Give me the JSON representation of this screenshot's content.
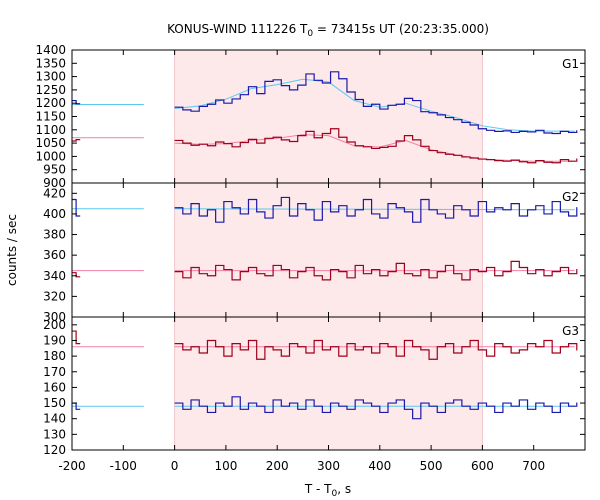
{
  "chart_data": {
    "type": "line",
    "title": {
      "main": "KONUS-WIND 111226 T",
      "sub": "0",
      "rest": " = 73415s UT (20:23:35.000)"
    },
    "xlabel": {
      "main": "T - T",
      "sub": "0",
      "rest": ", s"
    },
    "ylabel": "counts / sec",
    "xlim": [
      -200,
      800
    ],
    "xticks": [
      -200,
      -100,
      0,
      100,
      200,
      300,
      400,
      500,
      600,
      700
    ],
    "highlight_interval": [
      0,
      600
    ],
    "colors": {
      "highlight": "#fde8ea",
      "blue_data": "#1a1aaa",
      "blue_fit": "#5bc8f0",
      "red_data": "#a0001a",
      "red_fit": "#f080a8"
    },
    "panels": [
      {
        "name": "G1",
        "ylim": [
          900,
          1400
        ],
        "yticks": [
          900,
          950,
          1000,
          1050,
          1100,
          1150,
          1200,
          1250,
          1300,
          1350,
          1400
        ],
        "series": [
          {
            "color": "blue",
            "background_level": 1195,
            "background_x": [
              -200,
              -60
            ],
            "pre_data": {
              "x": [
                -200,
                -192
              ],
              "y": [
                1210,
                1198
              ]
            },
            "data": {
              "x": [
                0,
                16,
                32,
                48,
                64,
                80,
                96,
                112,
                128,
                144,
                160,
                176,
                192,
                208,
                224,
                240,
                256,
                272,
                288,
                304,
                320,
                336,
                352,
                368,
                384,
                400,
                416,
                432,
                448,
                464,
                480,
                496,
                512,
                528,
                544,
                560,
                576,
                592,
                608,
                624,
                640,
                656,
                672,
                688,
                704,
                720,
                736,
                752,
                768,
                784
              ],
              "y": [
                1185,
                1175,
                1170,
                1188,
                1196,
                1212,
                1200,
                1216,
                1232,
                1262,
                1236,
                1282,
                1288,
                1266,
                1250,
                1268,
                1310,
                1286,
                1276,
                1318,
                1292,
                1242,
                1214,
                1188,
                1196,
                1178,
                1192,
                1196,
                1218,
                1210,
                1168,
                1164,
                1156,
                1146,
                1138,
                1128,
                1118,
                1104,
                1098,
                1094,
                1096,
                1090,
                1094,
                1092,
                1098,
                1088,
                1086,
                1094,
                1090,
                1096
              ]
            },
            "fit": {
              "x": [
                0,
                50,
                100,
                150,
                200,
                250,
                300,
                350,
                400,
                450,
                500,
                550,
                600,
                650,
                700,
                780
              ],
              "y": [
                1180,
                1190,
                1215,
                1255,
                1270,
                1290,
                1280,
                1210,
                1185,
                1200,
                1170,
                1145,
                1115,
                1100,
                1095,
                1095
              ]
            }
          },
          {
            "color": "red",
            "background_level": 1070,
            "background_x": [
              -200,
              -60
            ],
            "pre_data": {
              "x": [
                -200,
                -192
              ],
              "y": [
                1058,
                1063
              ]
            },
            "data": {
              "x": [
                0,
                16,
                32,
                48,
                64,
                80,
                96,
                112,
                128,
                144,
                160,
                176,
                192,
                208,
                224,
                240,
                256,
                272,
                288,
                304,
                320,
                336,
                352,
                368,
                384,
                400,
                416,
                432,
                448,
                464,
                480,
                496,
                512,
                528,
                544,
                560,
                576,
                592,
                608,
                624,
                640,
                656,
                672,
                688,
                704,
                720,
                736,
                752,
                768,
                784
              ],
              "y": [
                1060,
                1050,
                1042,
                1046,
                1040,
                1054,
                1048,
                1036,
                1052,
                1064,
                1050,
                1068,
                1072,
                1062,
                1056,
                1078,
                1094,
                1070,
                1086,
                1104,
                1072,
                1054,
                1040,
                1036,
                1030,
                1034,
                1038,
                1058,
                1078,
                1062,
                1038,
                1022,
                1014,
                1008,
                1004,
                998,
                994,
                990,
                988,
                984,
                982,
                986,
                980,
                976,
                984,
                978,
                976,
                988,
                982,
                990
              ]
            },
            "fit": {
              "x": [
                0,
                50,
                100,
                150,
                200,
                250,
                300,
                350,
                400,
                450,
                500,
                550,
                600,
                650,
                700,
                780
              ],
              "y": [
                1050,
                1045,
                1048,
                1060,
                1068,
                1082,
                1078,
                1040,
                1035,
                1060,
                1025,
                1005,
                990,
                985,
                982,
                982
              ]
            }
          }
        ]
      },
      {
        "name": "G2",
        "ylim": [
          300,
          430
        ],
        "yticks": [
          300,
          320,
          340,
          360,
          380,
          400,
          420
        ],
        "series": [
          {
            "color": "blue",
            "background_level": 405,
            "background_x": [
              -200,
              -60
            ],
            "pre_data": {
              "x": [
                -200,
                -192
              ],
              "y": [
                414,
                398
              ]
            },
            "data": {
              "x": [
                0,
                16,
                32,
                48,
                64,
                80,
                96,
                112,
                128,
                144,
                160,
                176,
                192,
                208,
                224,
                240,
                256,
                272,
                288,
                304,
                320,
                336,
                352,
                368,
                384,
                400,
                416,
                432,
                448,
                464,
                480,
                496,
                512,
                528,
                544,
                560,
                576,
                592,
                608,
                624,
                640,
                656,
                672,
                688,
                704,
                720,
                736,
                752,
                768,
                784
              ],
              "y": [
                406,
                400,
                410,
                398,
                404,
                392,
                412,
                406,
                400,
                414,
                402,
                396,
                408,
                416,
                398,
                410,
                404,
                394,
                412,
                402,
                408,
                398,
                404,
                414,
                400,
                396,
                410,
                406,
                402,
                392,
                414,
                404,
                400,
                396,
                408,
                404,
                398,
                412,
                402,
                406,
                404,
                410,
                398,
                404,
                408,
                400,
                412,
                402,
                398,
                406
              ]
            },
            "fit": {
              "x": [
                0,
                780
              ],
              "y": [
                405,
                404
              ]
            }
          },
          {
            "color": "red",
            "background_level": 345,
            "background_x": [
              -200,
              -60
            ],
            "pre_data": {
              "x": [
                -200,
                -192
              ],
              "y": [
                343,
                339
              ]
            },
            "data": {
              "x": [
                0,
                16,
                32,
                48,
                64,
                80,
                96,
                112,
                128,
                144,
                160,
                176,
                192,
                208,
                224,
                240,
                256,
                272,
                288,
                304,
                320,
                336,
                352,
                368,
                384,
                400,
                416,
                432,
                448,
                464,
                480,
                496,
                512,
                528,
                544,
                560,
                576,
                592,
                608,
                624,
                640,
                656,
                672,
                688,
                704,
                720,
                736,
                752,
                768,
                784
              ],
              "y": [
                344,
                338,
                348,
                342,
                340,
                350,
                346,
                336,
                344,
                348,
                342,
                340,
                350,
                346,
                338,
                344,
                348,
                340,
                336,
                346,
                344,
                338,
                350,
                342,
                346,
                340,
                344,
                352,
                342,
                340,
                346,
                338,
                344,
                350,
                342,
                336,
                346,
                344,
                348,
                340,
                344,
                354,
                348,
                342,
                346,
                340,
                344,
                348,
                342,
                346
              ]
            },
            "fit": {
              "x": [
                0,
                780
              ],
              "y": [
                345,
                345
              ]
            }
          }
        ]
      },
      {
        "name": "G3",
        "ylim": [
          120,
          205
        ],
        "yticks": [
          120,
          130,
          140,
          150,
          160,
          170,
          180,
          190,
          200
        ],
        "series": [
          {
            "color": "red",
            "background_level": 186,
            "background_x": [
              -200,
              -60
            ],
            "pre_data": {
              "x": [
                -200,
                -192
              ],
              "y": [
                196,
                188
              ]
            },
            "data": {
              "x": [
                0,
                16,
                32,
                48,
                64,
                80,
                96,
                112,
                128,
                144,
                160,
                176,
                192,
                208,
                224,
                240,
                256,
                272,
                288,
                304,
                320,
                336,
                352,
                368,
                384,
                400,
                416,
                432,
                448,
                464,
                480,
                496,
                512,
                528,
                544,
                560,
                576,
                592,
                608,
                624,
                640,
                656,
                672,
                688,
                704,
                720,
                736,
                752,
                768,
                784
              ],
              "y": [
                188,
                184,
                186,
                182,
                190,
                186,
                180,
                188,
                184,
                190,
                178,
                186,
                184,
                180,
                188,
                186,
                182,
                190,
                184,
                186,
                180,
                188,
                184,
                186,
                182,
                188,
                186,
                180,
                190,
                186,
                184,
                178,
                186,
                188,
                182,
                186,
                190,
                184,
                180,
                188,
                186,
                182,
                184,
                188,
                186,
                190,
                182,
                186,
                188,
                184
              ]
            },
            "fit": {
              "x": [
                0,
                780
              ],
              "y": [
                186,
                186
              ]
            }
          },
          {
            "color": "blue",
            "background_level": 148,
            "background_x": [
              -200,
              -60
            ],
            "pre_data": {
              "x": [
                -200,
                -192
              ],
              "y": [
                150,
                146
              ]
            },
            "data": {
              "x": [
                0,
                16,
                32,
                48,
                64,
                80,
                96,
                112,
                128,
                144,
                160,
                176,
                192,
                208,
                224,
                240,
                256,
                272,
                288,
                304,
                320,
                336,
                352,
                368,
                384,
                400,
                416,
                432,
                448,
                464,
                480,
                496,
                512,
                528,
                544,
                560,
                576,
                592,
                608,
                624,
                640,
                656,
                672,
                688,
                704,
                720,
                736,
                752,
                768,
                784
              ],
              "y": [
                150,
                146,
                152,
                148,
                144,
                150,
                148,
                154,
                146,
                150,
                148,
                144,
                152,
                148,
                150,
                146,
                152,
                148,
                144,
                150,
                148,
                146,
                152,
                150,
                148,
                144,
                150,
                152,
                146,
                140,
                150,
                148,
                144,
                150,
                152,
                148,
                146,
                150,
                148,
                144,
                150,
                148,
                152,
                146,
                150,
                148,
                144,
                150,
                148,
                150
              ]
            },
            "fit": {
              "x": [
                0,
                780
              ],
              "y": [
                148,
                148
              ]
            }
          }
        ]
      }
    ]
  }
}
